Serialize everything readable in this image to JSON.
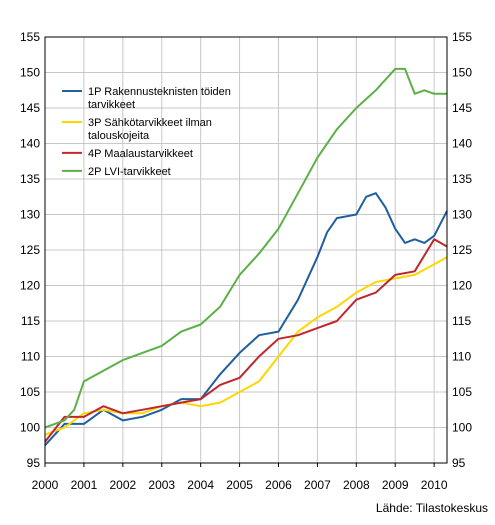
{
  "chart_data": {
    "type": "line",
    "source": "Lähde: Tilastokeskus",
    "x_ticks": [
      "2000",
      "2001",
      "2002",
      "2003",
      "2004",
      "2005",
      "2006",
      "2007",
      "2008",
      "2009",
      "2010"
    ],
    "xlim": [
      2000.0,
      2010.33
    ],
    "ylim": [
      95,
      155
    ],
    "y_ticks": [
      95,
      100,
      105,
      110,
      115,
      120,
      125,
      130,
      135,
      140,
      145,
      150,
      155
    ],
    "grid": true,
    "legend_position": "top-left",
    "series": [
      {
        "name": "1P Rakennusteknisten töiden tarvikkeet",
        "color": "#1f5fa0",
        "x": [
          2000.0,
          2000.5,
          2001.0,
          2001.5,
          2002.0,
          2002.5,
          2003.0,
          2003.5,
          2004.0,
          2004.5,
          2005.0,
          2005.5,
          2006.0,
          2006.5,
          2007.0,
          2007.25,
          2007.5,
          2008.0,
          2008.25,
          2008.5,
          2008.75,
          2009.0,
          2009.25,
          2009.5,
          2009.75,
          2010.0,
          2010.33
        ],
        "y": [
          97.5,
          100.5,
          100.5,
          102.5,
          101.0,
          101.5,
          102.5,
          104.0,
          104.0,
          107.5,
          110.5,
          113.0,
          113.5,
          118.0,
          124.0,
          127.5,
          129.5,
          130.0,
          132.5,
          133.0,
          131.0,
          128.0,
          126.0,
          126.5,
          126.0,
          127.0,
          130.5
        ]
      },
      {
        "name": "3P Sähkötarvikkeet ilman talouskojeita",
        "color": "#ffd700",
        "x": [
          2000.0,
          2000.5,
          2001.0,
          2001.5,
          2002.0,
          2002.5,
          2003.0,
          2003.5,
          2004.0,
          2004.5,
          2005.0,
          2005.5,
          2006.0,
          2006.5,
          2007.0,
          2007.5,
          2008.0,
          2008.5,
          2009.0,
          2009.5,
          2010.0,
          2010.33
        ],
        "y": [
          99.0,
          100.0,
          102.0,
          102.5,
          102.0,
          102.0,
          103.0,
          103.5,
          103.0,
          103.5,
          105.0,
          106.5,
          110.0,
          113.5,
          115.5,
          117.0,
          119.0,
          120.5,
          121.0,
          121.5,
          123.0,
          124.0
        ]
      },
      {
        "name": "4P Maalaustarvikkeet",
        "color": "#c0272d",
        "x": [
          2000.0,
          2000.5,
          2001.0,
          2001.5,
          2002.0,
          2002.5,
          2003.0,
          2003.5,
          2004.0,
          2004.5,
          2005.0,
          2005.5,
          2006.0,
          2006.5,
          2007.0,
          2007.5,
          2008.0,
          2008.5,
          2009.0,
          2009.5,
          2010.0,
          2010.33
        ],
        "y": [
          98.0,
          101.5,
          101.5,
          103.0,
          102.0,
          102.5,
          103.0,
          103.5,
          104.0,
          106.0,
          107.0,
          110.0,
          112.5,
          113.0,
          114.0,
          115.0,
          118.0,
          119.0,
          121.5,
          122.0,
          126.5,
          125.5
        ]
      },
      {
        "name": "2P LVI-tarvikkeet",
        "color": "#5cb046",
        "x": [
          2000.0,
          2000.5,
          2000.75,
          2001.0,
          2001.5,
          2002.0,
          2002.5,
          2003.0,
          2003.5,
          2004.0,
          2004.5,
          2005.0,
          2005.5,
          2006.0,
          2006.5,
          2007.0,
          2007.5,
          2008.0,
          2008.5,
          2009.0,
          2009.25,
          2009.5,
          2009.75,
          2010.0,
          2010.33
        ],
        "y": [
          100.0,
          101.0,
          102.5,
          106.5,
          108.0,
          109.5,
          110.5,
          111.5,
          113.5,
          114.5,
          117.0,
          121.5,
          124.5,
          128.0,
          133.0,
          138.0,
          142.0,
          145.0,
          147.5,
          150.5,
          150.5,
          147.0,
          147.5,
          147.0,
          147.0
        ]
      }
    ]
  }
}
